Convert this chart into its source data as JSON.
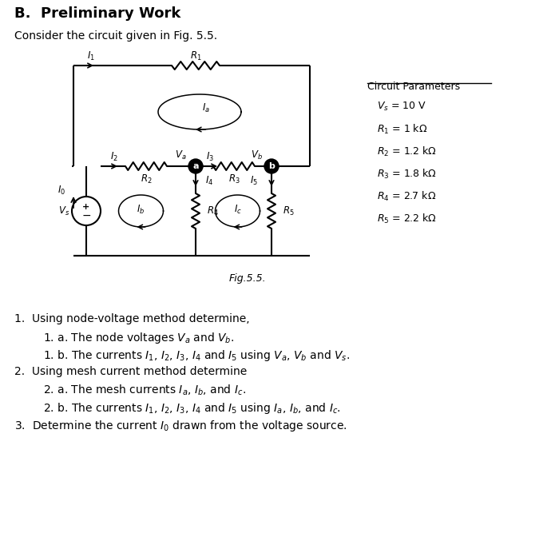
{
  "title": "B.  Preliminary Work",
  "subtitle": "Consider the circuit given in Fig. 5.5.",
  "fig_label": "Fig.5.5.",
  "circuit_params_title": "Circuit Parameters",
  "bg_color": "#ffffff"
}
